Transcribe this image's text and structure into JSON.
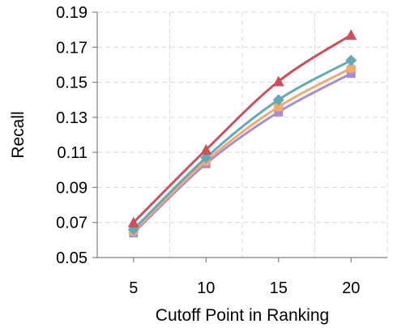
{
  "chart_data": {
    "type": "line",
    "xlabel": "Cutoff Point in Ranking",
    "ylabel": "Recall",
    "x": [
      5,
      10,
      15,
      20
    ],
    "xlim": [
      2.5,
      22.5
    ],
    "ylim": [
      0.05,
      0.19
    ],
    "x_ticks": [
      "5",
      "10",
      "15",
      "20"
    ],
    "y_ticks": [
      "0.05",
      "0.07",
      "0.09",
      "0.11",
      "0.13",
      "0.15",
      "0.17",
      "0.19"
    ],
    "x_gridlines": [
      7.5,
      12.5,
      17.5,
      22.5
    ],
    "grid": true,
    "legend": "none",
    "series": [
      {
        "values": [
          0.064,
          0.1035,
          0.133,
          0.155
        ],
        "color": "#a78fcf",
        "marker": "square"
      },
      {
        "values": [
          0.065,
          0.105,
          0.136,
          0.158
        ],
        "color": "#f0aa72",
        "marker": "circle"
      },
      {
        "values": [
          0.066,
          0.107,
          0.14,
          0.1625
        ],
        "color": "#66a9b5",
        "marker": "diamond"
      },
      {
        "values": [
          0.07,
          0.1115,
          0.1505,
          0.177
        ],
        "color": "#c9505f",
        "marker": "triangle"
      }
    ]
  }
}
